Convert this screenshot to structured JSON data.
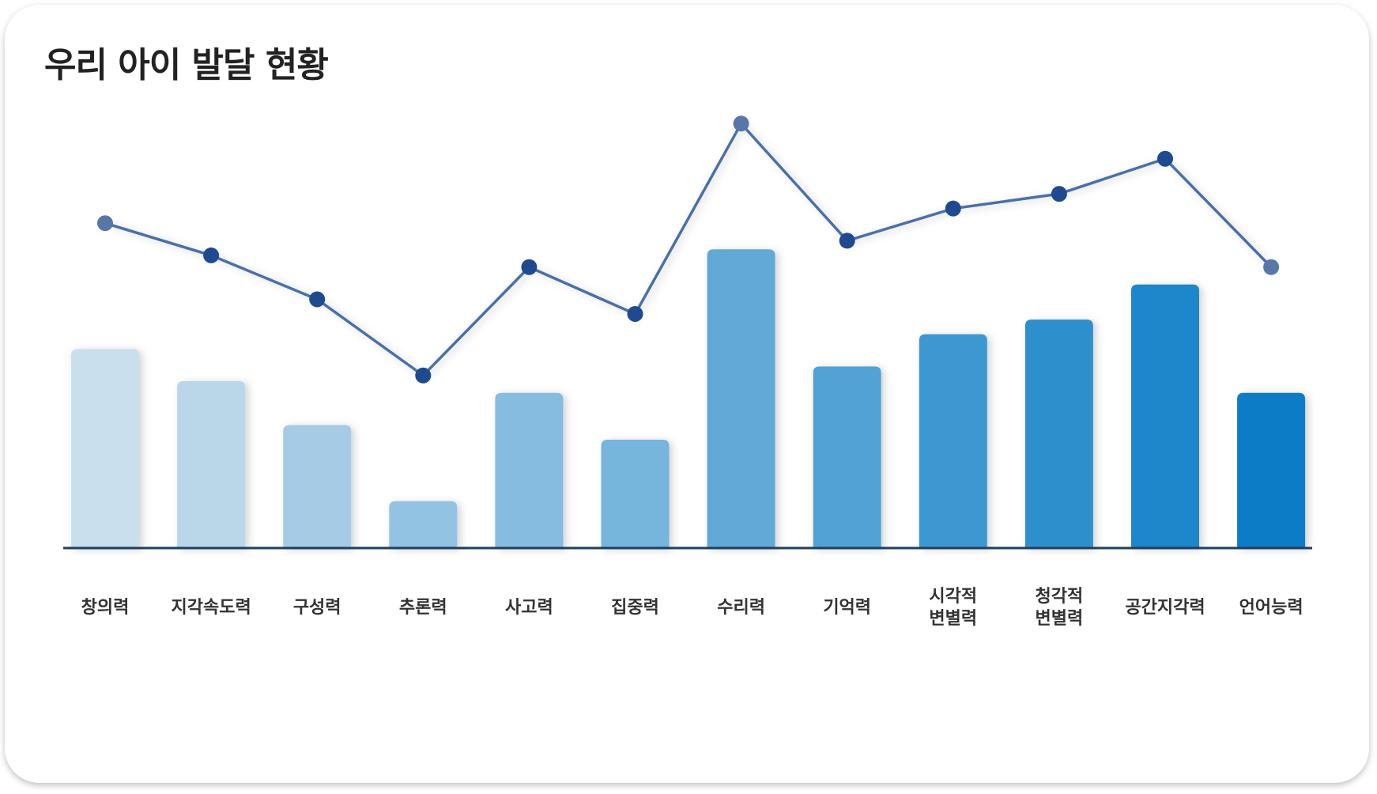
{
  "title": "우리 아이 발달 현황",
  "chart_data": {
    "type": "bar",
    "title": "우리 아이 발달 현황",
    "categories": [
      "창의력",
      "지각속도력",
      "구성력",
      "추론력",
      "사고력",
      "집중력",
      "수리력",
      "기억력",
      "시각적\n변별력",
      "청각적\n변별력",
      "공간지각력",
      "언어능력"
    ],
    "values": [
      68,
      57,
      42,
      16,
      53,
      37,
      102,
      62,
      73,
      78,
      90,
      53
    ],
    "overlay_line": {
      "type": "line",
      "values": [
        68,
        57,
        42,
        16,
        53,
        37,
        102,
        62,
        73,
        78,
        90,
        53
      ]
    },
    "ylim": [
      0,
      110
    ],
    "grid": false,
    "bar_colors": [
      "#cadfed",
      "#bad7ea",
      "#a5cbe5",
      "#92c3e3",
      "#86bce0",
      "#76b5dc",
      "#62a9d7",
      "#52a2d5",
      "#3d97d1",
      "#2f8fcd",
      "#1d87ca",
      "#077cc6"
    ],
    "line_color": "#4a70a8",
    "point_colors": {
      "dark": "#1f4a8f",
      "light": "#5877a8"
    },
    "axis_color": "#1e3f5f"
  }
}
